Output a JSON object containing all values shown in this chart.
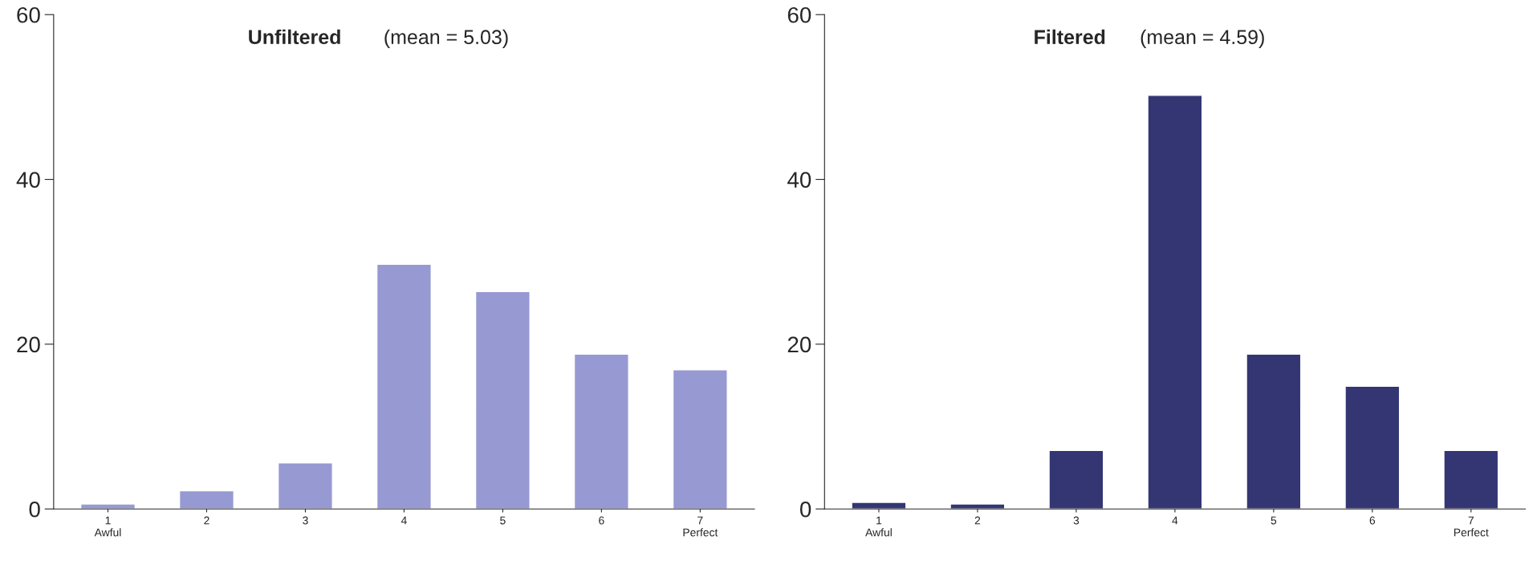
{
  "chart_data": [
    {
      "type": "bar",
      "title": "Unfiltered (mean = 5.03)",
      "categories": [
        "1\nAwful",
        "2",
        "3",
        "4",
        "5",
        "6",
        "7\nPerfect"
      ],
      "values": [
        0.6,
        2.2,
        5.6,
        29.7,
        26.4,
        18.8,
        16.9
      ],
      "color": "#9699d2",
      "ylim": [
        0,
        60
      ],
      "yticks": [
        0,
        20,
        40,
        60
      ],
      "grid": false,
      "legend": false
    },
    {
      "type": "bar",
      "title": "Filtered (mean = 4.59)",
      "categories": [
        "1\nAwful",
        "2",
        "3",
        "4",
        "5",
        "6",
        "7\nPerfect"
      ],
      "values": [
        0.8,
        0.6,
        7.1,
        50.2,
        18.8,
        14.9,
        7.1
      ],
      "color": "#333673",
      "ylim": [
        0,
        60
      ],
      "yticks": [
        0,
        20,
        40,
        60
      ],
      "grid": false,
      "legend": false
    }
  ]
}
